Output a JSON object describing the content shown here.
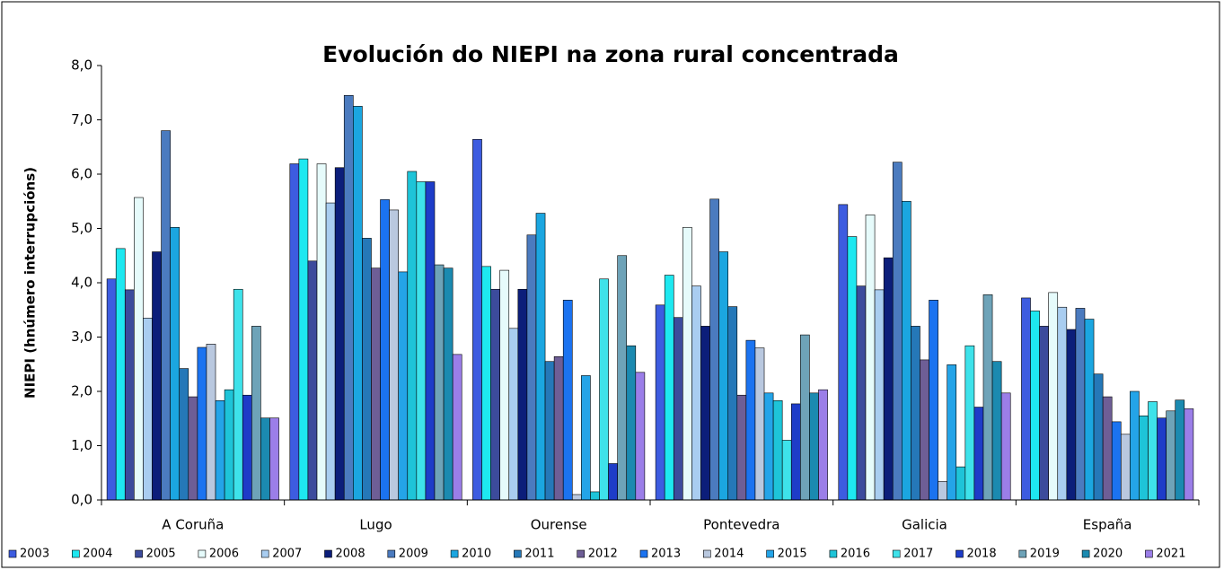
{
  "chart_data": {
    "type": "bar",
    "title": "Evolución do NIEPI na zona rural concentrada",
    "y_label": "NIEPI (hnúmero interrupcións)",
    "categories": [
      "A Coruña",
      "Lugo",
      "Ourense",
      "Pontevedra",
      "Galicia",
      "España"
    ],
    "ylim": [
      0,
      8
    ],
    "yticks": [
      {
        "value": 0,
        "label": "0,0"
      },
      {
        "value": 1,
        "label": "1,0"
      },
      {
        "value": 2,
        "label": "2,0"
      },
      {
        "value": 3,
        "label": "3,0"
      },
      {
        "value": 4,
        "label": "4,0"
      },
      {
        "value": 5,
        "label": "5,0"
      },
      {
        "value": 6,
        "label": "6,0"
      },
      {
        "value": 7,
        "label": "7,0"
      },
      {
        "value": 8,
        "label": "8,0"
      }
    ],
    "legend_position": "bottom",
    "series": [
      {
        "name": "2003",
        "color": "#3d5ce0",
        "values": [
          4.07,
          6.19,
          6.64,
          3.59,
          5.44,
          3.72
        ]
      },
      {
        "name": "2004",
        "color": "#1ee8f0",
        "values": [
          4.63,
          6.28,
          4.3,
          4.14,
          4.85,
          3.48
        ]
      },
      {
        "name": "2005",
        "color": "#3c4b9c",
        "values": [
          3.87,
          4.4,
          3.88,
          3.36,
          3.94,
          3.2
        ]
      },
      {
        "name": "2006",
        "color": "#e6fbfb",
        "values": [
          5.57,
          6.19,
          4.23,
          5.02,
          5.25,
          3.82
        ]
      },
      {
        "name": "2007",
        "color": "#a9cdf0",
        "values": [
          3.35,
          5.47,
          3.16,
          3.94,
          3.87,
          3.55
        ]
      },
      {
        "name": "2008",
        "color": "#0c1e7a",
        "values": [
          4.57,
          6.12,
          3.88,
          3.2,
          4.46,
          3.14
        ]
      },
      {
        "name": "2009",
        "color": "#4b7bbf",
        "values": [
          6.8,
          7.45,
          4.88,
          5.54,
          6.22,
          3.53
        ]
      },
      {
        "name": "2010",
        "color": "#1ba6e0",
        "values": [
          5.02,
          7.25,
          5.28,
          4.57,
          5.5,
          3.33
        ]
      },
      {
        "name": "2011",
        "color": "#2578b8",
        "values": [
          2.42,
          4.82,
          2.55,
          3.56,
          3.2,
          2.32
        ]
      },
      {
        "name": "2012",
        "color": "#6e5e96",
        "values": [
          1.9,
          4.27,
          2.64,
          1.93,
          2.58,
          1.9
        ]
      },
      {
        "name": "2013",
        "color": "#1b73f0",
        "values": [
          2.81,
          5.53,
          3.68,
          2.94,
          3.68,
          1.44
        ]
      },
      {
        "name": "2014",
        "color": "#b9c8df",
        "values": [
          2.87,
          5.34,
          0.1,
          2.8,
          0.34,
          1.21
        ]
      },
      {
        "name": "2015",
        "color": "#24a4e8",
        "values": [
          1.83,
          4.2,
          2.29,
          1.97,
          2.49,
          2.0
        ]
      },
      {
        "name": "2016",
        "color": "#1ec4d8",
        "values": [
          2.03,
          6.05,
          0.15,
          1.83,
          0.61,
          1.55
        ]
      },
      {
        "name": "2017",
        "color": "#3ee2ea",
        "values": [
          3.88,
          5.86,
          4.07,
          1.1,
          2.84,
          1.81
        ]
      },
      {
        "name": "2018",
        "color": "#1e3cc8",
        "values": [
          1.93,
          5.86,
          0.67,
          1.77,
          1.71,
          1.51
        ]
      },
      {
        "name": "2019",
        "color": "#6ea3b8",
        "values": [
          3.2,
          4.33,
          4.5,
          3.04,
          3.78,
          1.64
        ]
      },
      {
        "name": "2020",
        "color": "#1b8ab0",
        "values": [
          1.51,
          4.27,
          2.84,
          1.97,
          2.55,
          1.84
        ]
      },
      {
        "name": "2021",
        "color": "#9b7ee8",
        "values": [
          1.51,
          2.68,
          2.35,
          2.03,
          1.97,
          1.68
        ]
      }
    ]
  }
}
